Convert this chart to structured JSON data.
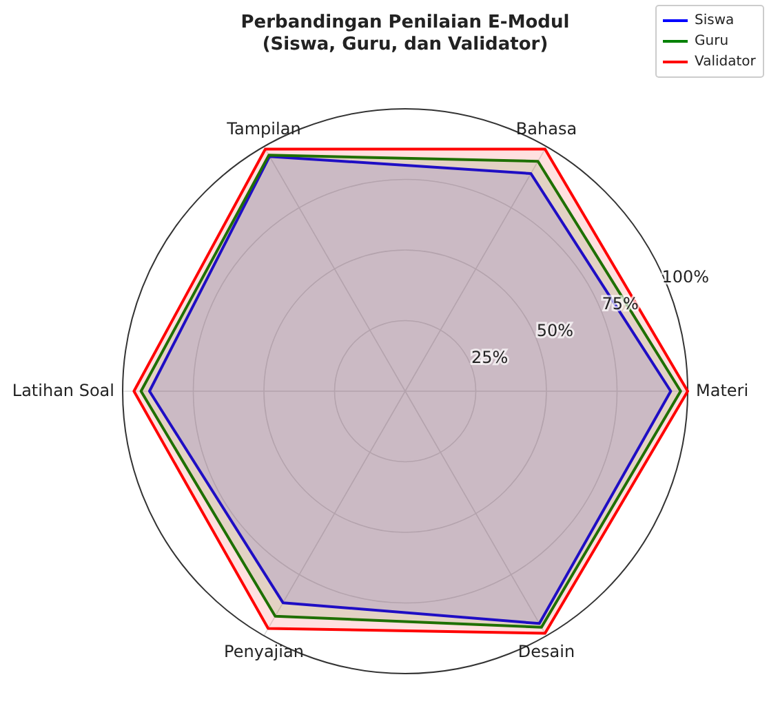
{
  "chart_data": {
    "type": "radar",
    "title": "Perbandingan Penilaian E-Modul\n(Siswa, Guru, dan Validator)",
    "categories": [
      "Bahasa",
      "Materi",
      "Desain",
      "Penyajian",
      "Latihan Soal",
      "Tampilan"
    ],
    "series": [
      {
        "name": "Siswa",
        "color": "#0000ff",
        "values": [
          89,
          94,
          95,
          86.5,
          90.5,
          96
        ]
      },
      {
        "name": "Guru",
        "color": "#008000",
        "values": [
          94,
          97.5,
          96.5,
          92,
          93.5,
          96.5
        ]
      },
      {
        "name": "Validator",
        "color": "#ff0000",
        "values": [
          99,
          100,
          99,
          97,
          96,
          99
        ]
      }
    ],
    "ylim": [
      0,
      100
    ],
    "yticks": [
      {
        "value": 25,
        "label": "25%"
      },
      {
        "value": 50,
        "label": "50%"
      },
      {
        "value": 75,
        "label": "75%"
      },
      {
        "value": 100,
        "label": "100%"
      }
    ],
    "grid": true,
    "legend": "top right"
  }
}
